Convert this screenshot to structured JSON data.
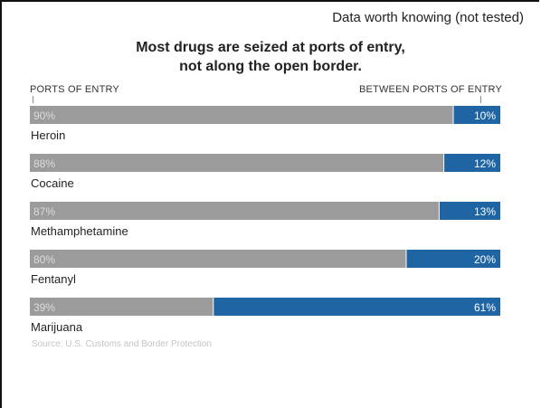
{
  "note": "Data worth knowing (not tested)",
  "chart_data": {
    "type": "bar",
    "stacked": true,
    "orientation": "horizontal",
    "title_lines": [
      "Most drugs are seized at ports of entry,",
      "not along the open border."
    ],
    "left_axis_label": "PORTS OF ENTRY",
    "right_axis_label": "BETWEEN PORTS OF ENTRY",
    "categories": [
      "Heroin",
      "Cocaine",
      "Methamphetamine",
      "Fentanyl",
      "Marijuana"
    ],
    "series": [
      {
        "name": "PORTS OF ENTRY",
        "values": [
          90,
          88,
          87,
          80,
          39
        ],
        "color": "#9b9b9b",
        "label_color": "#dcdcdc"
      },
      {
        "name": "BETWEEN PORTS OF ENTRY",
        "values": [
          10,
          12,
          13,
          20,
          61
        ],
        "color": "#1f64a3",
        "label_color": "#ffffff"
      }
    ],
    "value_suffix": "%",
    "xlim": [
      0,
      100
    ],
    "source": "Source: U.S. Customs and Border Protection"
  }
}
